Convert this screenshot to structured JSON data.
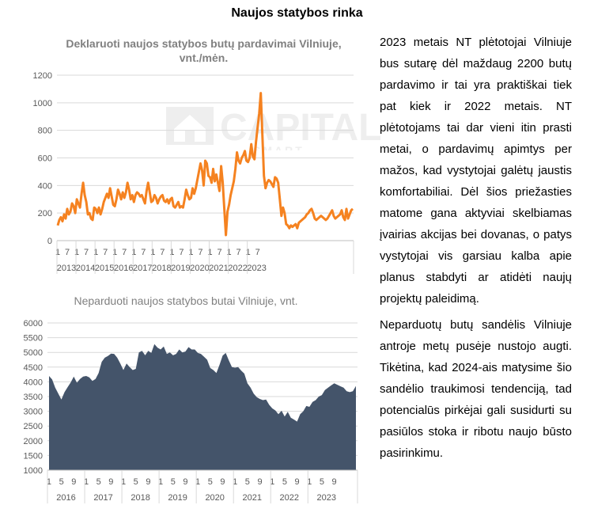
{
  "page_title": "Naujos statybos rinka",
  "watermark": {
    "word": "CAPITAL",
    "sub": "SMART"
  },
  "paragraphs": [
    "2023 metais NT plėtotojai Vilniuje bus sutarę dėl maždaug 2200 butų pardavimo ir tai yra praktiškai tiek pat kiek ir 2022 metais. NT plėtotojams tai dar vieni itin prasti metai, o pardavimų apimtys per mažos, kad vystytojai galėtų jaustis komfortabiliai. Dėl šios priežasties matome gana aktyviai skelbiamas įvairias akcijas bei dovanas, o patys vystytojai vis garsiau kalba apie planus stabdyti ar atidėti naujų projektų paleidimą.",
    "Neparduotų butų sandėlis Vilniuje antroje metų pusėje nustojo augti. Tikėtina, kad 2024-ais matysime šio sandėlio traukimosi tendenciją, tad potencialūs pirkėjai gali susidurti su pasiūlos stoka ir ribotu naujo būsto pasirinkimu."
  ],
  "chart_data": [
    {
      "type": "line",
      "title": "Deklaruoti naujos statybos butų pardavimai Vilniuje, vnt./mėn.",
      "series_color": "#F58220",
      "ylim": [
        0,
        1200
      ],
      "yticks": [
        0,
        200,
        400,
        600,
        800,
        1000,
        1200
      ],
      "x_month_labels": [
        "1",
        "7"
      ],
      "years": [
        "2013",
        "2014",
        "2015",
        "2016",
        "2017",
        "2018",
        "2019",
        "2020",
        "2021",
        "2022",
        "2023"
      ],
      "grid": true,
      "legend": "none",
      "values": [
        110,
        150,
        170,
        140,
        190,
        160,
        230,
        190,
        210,
        270,
        250,
        200,
        300,
        270,
        240,
        340,
        420,
        330,
        280,
        190,
        200,
        160,
        150,
        240,
        230,
        200,
        240,
        190,
        230,
        280,
        310,
        340,
        310,
        380,
        320,
        260,
        250,
        300,
        370,
        340,
        300,
        350,
        310,
        350,
        420,
        370,
        300,
        330,
        280,
        330,
        350,
        340,
        320,
        330,
        300,
        270,
        360,
        420,
        350,
        280,
        290,
        330,
        310,
        270,
        300,
        320,
        330,
        290,
        280,
        300,
        270,
        300,
        310,
        250,
        240,
        260,
        280,
        240,
        250,
        240,
        300,
        370,
        330,
        300,
        310,
        380,
        340,
        380,
        440,
        500,
        560,
        510,
        400,
        580,
        560,
        470,
        460,
        420,
        520,
        430,
        480,
        420,
        360,
        540,
        420,
        230,
        40,
        210,
        260,
        330,
        380,
        430,
        520,
        640,
        580,
        560,
        600,
        620,
        650,
        580,
        570,
        600,
        700,
        610,
        590,
        720,
        820,
        920,
        1070,
        770,
        470,
        380,
        420,
        440,
        430,
        410,
        390,
        460,
        450,
        420,
        300,
        180,
        240,
        200,
        120,
        110,
        90,
        110,
        100,
        110,
        120,
        90,
        130,
        140,
        150,
        160,
        170,
        190,
        200,
        220,
        230,
        200,
        160,
        150,
        160,
        170,
        180,
        170,
        160,
        150,
        160,
        180,
        200,
        220,
        180,
        160,
        170,
        180,
        190,
        220,
        170,
        150,
        230,
        160,
        190,
        220,
        230
      ]
    },
    {
      "type": "area",
      "title": "Neparduoti naujos statybos butai Vilniuje, vnt.",
      "series_color": "#44546A",
      "ylim": [
        1000,
        6000
      ],
      "yticks": [
        1000,
        1500,
        2000,
        2500,
        3000,
        3500,
        4000,
        4500,
        5000,
        5500,
        6000
      ],
      "x_month_labels": [
        "1",
        "5",
        "9"
      ],
      "years": [
        "2016",
        "2017",
        "2018",
        "2019",
        "2020",
        "2021",
        "2022",
        "2023"
      ],
      "grid": true,
      "legend": "none",
      "values": [
        4200,
        4080,
        3800,
        3600,
        3400,
        3650,
        3820,
        3980,
        4180,
        3970,
        4100,
        4180,
        4200,
        4150,
        4030,
        4100,
        4300,
        4680,
        4820,
        4880,
        4960,
        4950,
        4820,
        4620,
        4400,
        4620,
        4500,
        4400,
        4440,
        5000,
        5050,
        4900,
        5050,
        4980,
        5280,
        5160,
        5100,
        5200,
        4950,
        5000,
        4900,
        4950,
        5100,
        5000,
        5030,
        5180,
        5100,
        5100,
        4980,
        4950,
        4850,
        4750,
        4470,
        4400,
        4300,
        4580,
        4890,
        4980,
        4730,
        4500,
        4480,
        4500,
        4380,
        4280,
        3950,
        3800,
        3600,
        3480,
        3420,
        3380,
        3400,
        3220,
        3100,
        3030,
        2900,
        3020,
        2820,
        2980,
        2780,
        2720,
        2650,
        2900,
        3000,
        3180,
        3150,
        3320,
        3380,
        3500,
        3550,
        3720,
        3800,
        3880,
        3950,
        3900,
        3850,
        3800,
        3680,
        3650,
        3680,
        3860
      ]
    }
  ]
}
